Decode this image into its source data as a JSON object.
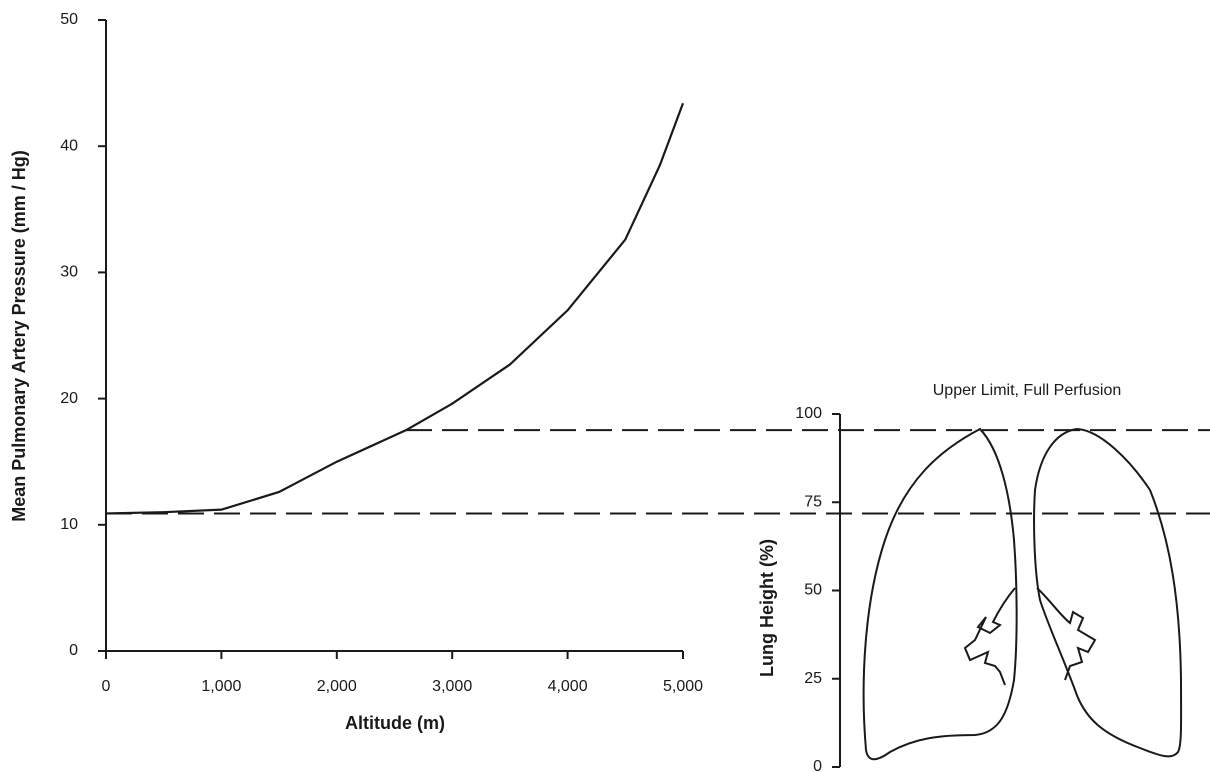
{
  "chart_data": [
    {
      "type": "line",
      "xlabel": "Altitude (m)",
      "ylabel": "Mean Pulmonary Artery Pressure (mm / Hg)",
      "x": [
        0,
        500,
        1000,
        1500,
        2000,
        2600,
        3000,
        3500,
        4000,
        4500,
        4800,
        5000
      ],
      "series": [
        {
          "color": "#1a1a1a",
          "values": [
            10.9,
            11.0,
            11.2,
            12.6,
            15.0,
            17.5,
            19.6,
            22.7,
            27.0,
            32.6,
            38.5,
            43.4
          ]
        }
      ],
      "xlim": [
        0,
        5000
      ],
      "xticks": [
        0,
        {
          "value": 1000,
          "label": "1,000"
        },
        {
          "value": 2000,
          "label": "2,000"
        },
        {
          "value": 3000,
          "label": "3,000"
        },
        {
          "value": 4000,
          "label": "4,000"
        },
        {
          "value": 5000,
          "label": "5,000"
        }
      ],
      "ylim": [
        0,
        50
      ],
      "yticks": [
        0,
        10,
        20,
        30,
        40,
        50
      ],
      "hlines": [
        {
          "y": 17.5,
          "x0": 2600
        },
        {
          "y": 10.9,
          "x0": 0
        }
      ]
    },
    {
      "type": "diagram",
      "title": "Upper Limit, Full Perfusion",
      "ylabel": "Lung Height (%)",
      "ylim": [
        0,
        100
      ],
      "yticks": [
        0,
        25,
        50,
        75,
        100
      ]
    }
  ]
}
